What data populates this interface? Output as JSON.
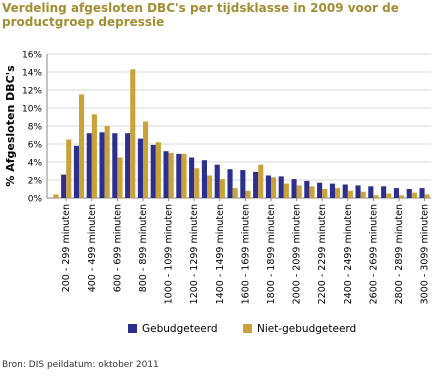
{
  "chart_data": {
    "type": "bar",
    "title": "Verdeling afgesloten DBC's per tijdsklasse in 2009 voor de productgroep depressie",
    "y_label": "% Afgesloten DBC's",
    "source": "Bron: DIS peildatum: oktober 2011",
    "categories": [
      null,
      "200 - 299 minuten",
      null,
      "400 - 499 minuten",
      null,
      "600 - 699 minuten",
      null,
      "800 - 899 minuten",
      null,
      "1000 - 1099 minuten",
      null,
      "1200 - 1299 minuten",
      null,
      "1400 - 1499 minuten",
      null,
      "1600 - 1699 minuten",
      null,
      "1800 - 1899 minuten",
      null,
      "2000 - 2099 minuten",
      null,
      "2200 - 2299 minuten",
      null,
      "2400 - 2499 minuten",
      null,
      "2600 - 2699 minuten",
      null,
      "2800 - 2899 minuten",
      null,
      "3000 - 3099 minuten"
    ],
    "series": [
      {
        "name": "Gebudgeteerd",
        "color": "#2c2f8e",
        "values": [
          0,
          2.6,
          5.8,
          7.2,
          7.3,
          7.2,
          7.2,
          6.6,
          5.9,
          5.2,
          4.9,
          4.5,
          4.2,
          3.7,
          3.2,
          3.1,
          2.9,
          2.5,
          2.4,
          2.1,
          1.9,
          1.7,
          1.6,
          1.5,
          1.4,
          1.3,
          1.3,
          1.1,
          1.0,
          1.1
        ]
      },
      {
        "name": "Niet-gebudgeteerd",
        "color": "#c9a23c",
        "values": [
          0.4,
          6.5,
          11.5,
          9.3,
          8.0,
          4.5,
          14.3,
          8.5,
          6.2,
          5.0,
          4.9,
          3.3,
          2.5,
          2.1,
          1.1,
          0.8,
          3.7,
          2.3,
          1.6,
          1.4,
          1.3,
          1.0,
          1.1,
          0.8,
          0.7,
          0.3,
          0.5,
          0.3,
          0.6,
          0.4
        ]
      }
    ],
    "ylim": [
      0,
      16
    ],
    "yticks": [
      {
        "value": 0,
        "label": "0%"
      },
      {
        "value": 2,
        "label": "2%"
      },
      {
        "value": 4,
        "label": "4%"
      },
      {
        "value": 6,
        "label": "6%"
      },
      {
        "value": 8,
        "label": "8%"
      },
      {
        "value": 10,
        "label": "10%"
      },
      {
        "value": 12,
        "label": "12%"
      },
      {
        "value": 14,
        "label": "14%"
      },
      {
        "value": 16,
        "label": "16%"
      }
    ],
    "grid": true,
    "legend": "bottom"
  }
}
